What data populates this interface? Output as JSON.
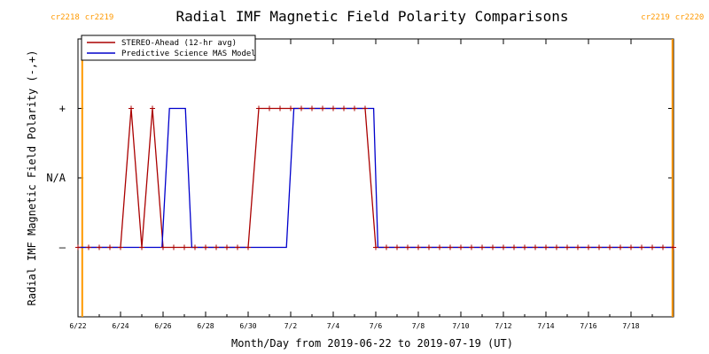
{
  "chart_data": {
    "type": "line",
    "title": "Radial IMF Magnetic Field Polarity Comparisons",
    "xlabel": "Month/Day from 2019-06-22 to 2019-07-19 (UT)",
    "ylabel": "Radial IMF Magnetic Field Polarity (-,+)",
    "x_range_days": [
      0,
      28
    ],
    "ylim": [
      -2,
      2
    ],
    "x_ticks": [
      {
        "day": 0,
        "label": "6/22"
      },
      {
        "day": 2,
        "label": "6/24"
      },
      {
        "day": 4,
        "label": "6/26"
      },
      {
        "day": 6,
        "label": "6/28"
      },
      {
        "day": 8,
        "label": "6/30"
      },
      {
        "day": 10,
        "label": "7/2"
      },
      {
        "day": 12,
        "label": "7/4"
      },
      {
        "day": 14,
        "label": "7/6"
      },
      {
        "day": 16,
        "label": "7/8"
      },
      {
        "day": 18,
        "label": "7/10"
      },
      {
        "day": 20,
        "label": "7/12"
      },
      {
        "day": 22,
        "label": "7/14"
      },
      {
        "day": 24,
        "label": "7/16"
      },
      {
        "day": 26,
        "label": "7/18"
      }
    ],
    "y_ticks": [
      {
        "value": 1,
        "label": "+"
      },
      {
        "value": 0,
        "label": "N/A"
      },
      {
        "value": -1,
        "label": "–"
      }
    ],
    "legend": {
      "placement": "top-left",
      "entries": [
        {
          "name": "STEREO-Ahead (12-hr avg)",
          "color": "#aa0000"
        },
        {
          "name": "Predictive Science MAS Model",
          "color": "#0000cc"
        }
      ]
    },
    "carrington_markers": [
      {
        "day": 0.2,
        "label_left": "cr2218",
        "label_right": "cr2219"
      },
      {
        "day": 27.95,
        "label_left": "cr2219",
        "label_right": "cr2220"
      }
    ],
    "marker_color": "#ff9900",
    "series": [
      {
        "name": "STEREO-Ahead (12-hr avg)",
        "color": "#aa0000",
        "points": [
          [
            0,
            -1
          ],
          [
            0.5,
            -1
          ],
          [
            1,
            -1
          ],
          [
            1.5,
            -1
          ],
          [
            2,
            -1
          ],
          [
            2.5,
            1
          ],
          [
            3,
            -1
          ],
          [
            3.5,
            1
          ],
          [
            4,
            -1
          ],
          [
            4.5,
            -1
          ],
          [
            5,
            -1
          ],
          [
            5.5,
            -1
          ],
          [
            6,
            -1
          ],
          [
            6.5,
            -1
          ],
          [
            7,
            -1
          ],
          [
            7.5,
            -1
          ],
          [
            8,
            -1
          ],
          [
            8.5,
            1
          ],
          [
            9,
            1
          ],
          [
            9.5,
            1
          ],
          [
            10,
            1
          ],
          [
            10.5,
            1
          ],
          [
            11,
            1
          ],
          [
            11.5,
            1
          ],
          [
            12,
            1
          ],
          [
            12.5,
            1
          ],
          [
            13,
            1
          ],
          [
            13.5,
            1
          ],
          [
            14,
            -1
          ],
          [
            14.5,
            -1
          ],
          [
            15,
            -1
          ],
          [
            15.5,
            -1
          ],
          [
            16,
            -1
          ],
          [
            16.5,
            -1
          ],
          [
            17,
            -1
          ],
          [
            17.5,
            -1
          ],
          [
            18,
            -1
          ],
          [
            18.5,
            -1
          ],
          [
            19,
            -1
          ],
          [
            19.5,
            -1
          ],
          [
            20,
            -1
          ],
          [
            20.5,
            -1
          ],
          [
            21,
            -1
          ],
          [
            21.5,
            -1
          ],
          [
            22,
            -1
          ],
          [
            22.5,
            -1
          ],
          [
            23,
            -1
          ],
          [
            23.5,
            -1
          ],
          [
            24,
            -1
          ],
          [
            24.5,
            -1
          ],
          [
            25,
            -1
          ],
          [
            25.5,
            -1
          ],
          [
            26,
            -1
          ],
          [
            26.5,
            -1
          ],
          [
            27,
            -1
          ],
          [
            27.5,
            -1
          ],
          [
            28,
            -1
          ]
        ]
      },
      {
        "name": "Predictive Science MAS Model",
        "color": "#0000cc",
        "points": [
          [
            0,
            -1
          ],
          [
            3.95,
            -1
          ],
          [
            4.3,
            1
          ],
          [
            5.05,
            1
          ],
          [
            5.35,
            -1
          ],
          [
            9.8,
            -1
          ],
          [
            10.15,
            1
          ],
          [
            13.9,
            1
          ],
          [
            14.1,
            -1
          ],
          [
            28,
            -1
          ]
        ]
      }
    ]
  }
}
